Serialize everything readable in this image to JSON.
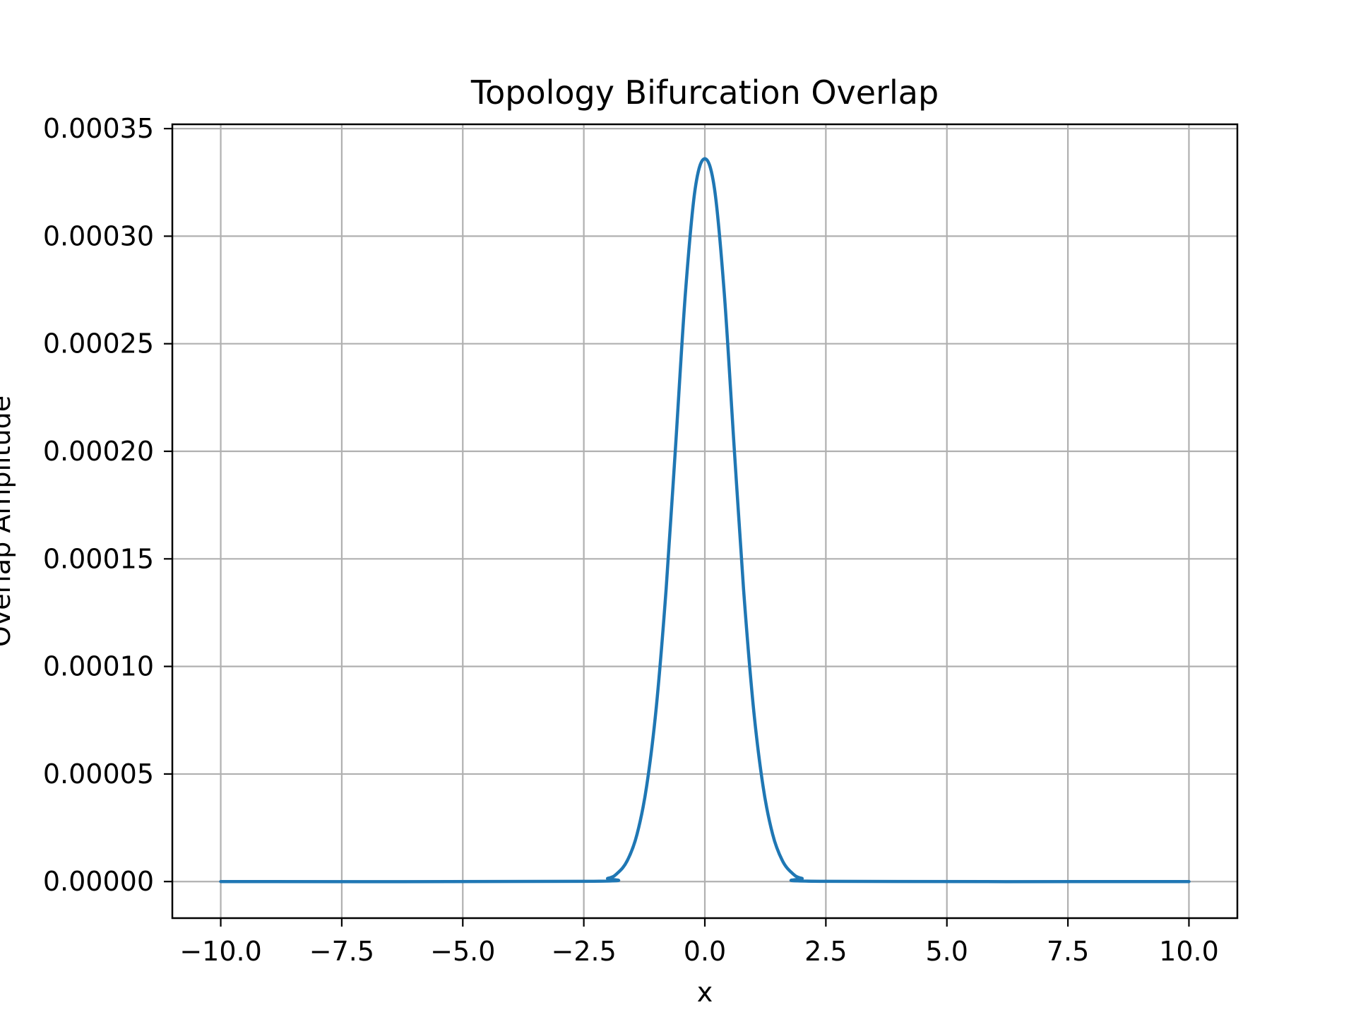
{
  "chart_data": {
    "type": "line",
    "title": "Topology Bifurcation Overlap",
    "xlabel": "x",
    "ylabel": "Overlap Amplitude",
    "xlim": [
      -11.0,
      11.0
    ],
    "ylim": [
      -1.7e-05,
      0.000352
    ],
    "x_ticks": [
      -10.0,
      -7.5,
      -5.0,
      -2.5,
      0.0,
      2.5,
      5.0,
      7.5,
      10.0
    ],
    "x_tick_labels": [
      "−10.0",
      "−7.5",
      "−5.0",
      "−2.5",
      "0.0",
      "2.5",
      "5.0",
      "7.5",
      "10.0"
    ],
    "y_ticks": [
      0.0,
      5e-05,
      0.0001,
      0.00015,
      0.0002,
      0.00025,
      0.0003,
      0.00035
    ],
    "y_tick_labels": [
      "0.00000",
      "0.00005",
      "0.00010",
      "0.00015",
      "0.00020",
      "0.00025",
      "0.00030",
      "0.00035"
    ],
    "grid": true,
    "series": [
      {
        "color": "#1f77b4",
        "x": [
          -10.0,
          -2.5,
          -2.0,
          -1.8,
          -1.6,
          -1.4,
          -1.2,
          -1.0,
          -0.8,
          -0.6,
          -0.4,
          -0.2,
          0.0,
          0.2,
          0.4,
          0.6,
          0.8,
          1.0,
          1.2,
          1.4,
          1.6,
          1.8,
          2.0,
          2.5,
          10.0
        ],
        "y": [
          0.0,
          1e-07,
          1.5e-06,
          4e-06,
          9.8e-06,
          2.2e-05,
          4.46e-05,
          8.18e-05,
          0.000136,
          0.000204,
          0.000274,
          0.000322,
          0.000336,
          0.000322,
          0.000274,
          0.000204,
          0.000136,
          8.18e-05,
          4.46e-05,
          2.2e-05,
          9.8e-06,
          4e-06,
          1.5e-06,
          1e-07,
          0.0
        ]
      }
    ]
  }
}
